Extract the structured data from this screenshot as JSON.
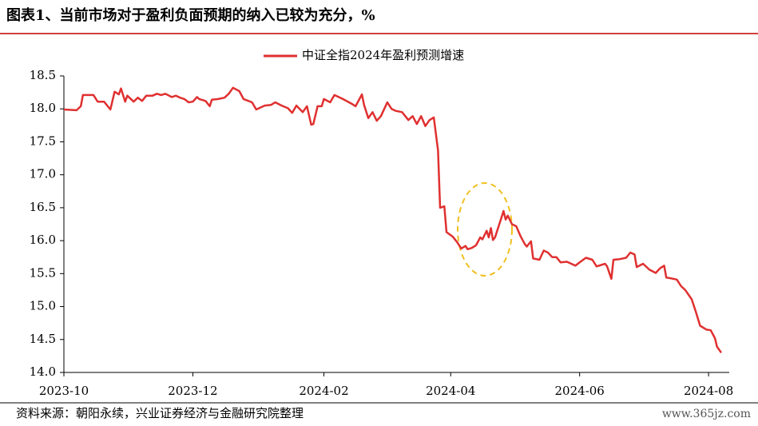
{
  "chart_data": {
    "type": "line",
    "title": "图表1、当前市场对于盈利负面预期的纳入已较为充分，%",
    "source": "资料来源：朝阳永续，兴业证券经济与金融研究院整理",
    "watermark": "www.365jz.com",
    "legend": "top",
    "x": [
      0,
      6,
      8,
      9,
      14,
      16,
      19,
      22,
      24,
      26,
      27,
      29,
      30,
      33,
      35,
      37,
      39,
      42,
      44,
      46,
      48,
      51,
      53,
      55,
      57,
      59,
      61,
      63,
      64,
      67,
      69,
      70,
      73,
      76,
      78,
      80,
      83,
      85,
      89,
      91,
      95,
      98,
      100,
      103,
      106,
      108,
      110,
      113,
      115,
      117,
      118,
      120,
      122,
      123,
      126,
      128,
      132,
      136,
      138,
      141,
      142,
      144,
      146,
      148,
      150,
      153,
      155,
      157,
      160,
      163,
      165,
      167,
      169,
      171,
      173,
      175,
      177,
      178,
      180,
      181,
      184,
      186,
      188,
      190,
      191,
      193,
      195,
      197,
      198,
      200,
      201,
      202,
      203,
      204,
      206,
      207,
      208,
      209,
      210,
      212,
      214,
      216,
      218,
      219,
      221,
      222,
      225,
      227,
      229,
      231,
      233,
      235,
      238,
      242,
      244,
      247,
      250,
      252,
      256,
      257,
      259,
      260,
      263,
      266,
      268,
      270,
      271,
      274,
      277,
      280,
      282,
      284,
      285,
      287,
      290,
      292,
      294,
      297,
      299,
      301,
      304,
      306,
      308,
      309,
      311
    ],
    "series": [
      {
        "name": "中证全指2024年盈利预测增速",
        "color": "#e03030",
        "values": [
          17.99,
          17.98,
          18.04,
          18.21,
          18.21,
          18.11,
          18.11,
          17.99,
          18.26,
          18.22,
          18.31,
          18.11,
          18.2,
          18.11,
          18.17,
          18.12,
          18.2,
          18.2,
          18.23,
          18.21,
          18.23,
          18.18,
          18.2,
          18.17,
          18.15,
          18.1,
          18.11,
          18.18,
          18.15,
          18.12,
          18.04,
          18.14,
          18.15,
          18.17,
          18.23,
          18.32,
          18.27,
          18.15,
          18.1,
          17.99,
          18.05,
          18.06,
          18.1,
          18.05,
          18.01,
          17.94,
          18.05,
          17.95,
          18.04,
          17.76,
          17.77,
          18.04,
          18.04,
          18.15,
          18.1,
          18.21,
          18.15,
          18.08,
          18.04,
          18.22,
          18.06,
          17.86,
          17.95,
          17.82,
          17.89,
          18.1,
          18.0,
          17.97,
          17.95,
          17.83,
          17.89,
          17.77,
          17.89,
          17.74,
          17.83,
          17.87,
          17.37,
          16.5,
          16.52,
          16.13,
          16.06,
          15.98,
          15.88,
          15.92,
          15.87,
          15.89,
          15.93,
          16.05,
          16.02,
          16.15,
          16.05,
          16.19,
          16.01,
          16.05,
          16.25,
          16.35,
          16.45,
          16.32,
          16.38,
          16.25,
          16.22,
          16.07,
          15.95,
          15.91,
          15.99,
          15.73,
          15.71,
          15.85,
          15.82,
          15.75,
          15.75,
          15.67,
          15.68,
          15.62,
          15.67,
          15.74,
          15.71,
          15.61,
          15.65,
          15.61,
          15.42,
          15.71,
          15.72,
          15.74,
          15.82,
          15.79,
          15.6,
          15.65,
          15.56,
          15.51,
          15.58,
          15.62,
          15.44,
          15.43,
          15.41,
          15.31,
          15.25,
          15.11,
          14.92,
          14.71,
          14.65,
          14.64,
          14.52,
          14.39,
          14.3
        ]
      }
    ],
    "xlim": [
      0,
      311
    ],
    "xticks": [
      {
        "value": 0,
        "label": "2023-10"
      },
      {
        "value": 61,
        "label": "2023-12"
      },
      {
        "value": 123,
        "label": "2024-02"
      },
      {
        "value": 183,
        "label": "2024-04"
      },
      {
        "value": 244,
        "label": "2024-06"
      },
      {
        "value": 305,
        "label": "2024-08"
      }
    ],
    "ylim": [
      14,
      18.5
    ],
    "yticks": [
      {
        "value": 14,
        "label": "14.0"
      },
      14.5,
      {
        "value": 15,
        "label": "15.0"
      },
      15.5,
      {
        "value": 16,
        "label": "16.0"
      },
      16.5,
      {
        "value": 17,
        "label": "17.0"
      },
      17.5,
      {
        "value": 18,
        "label": "18.0"
      },
      18.5
    ]
  }
}
